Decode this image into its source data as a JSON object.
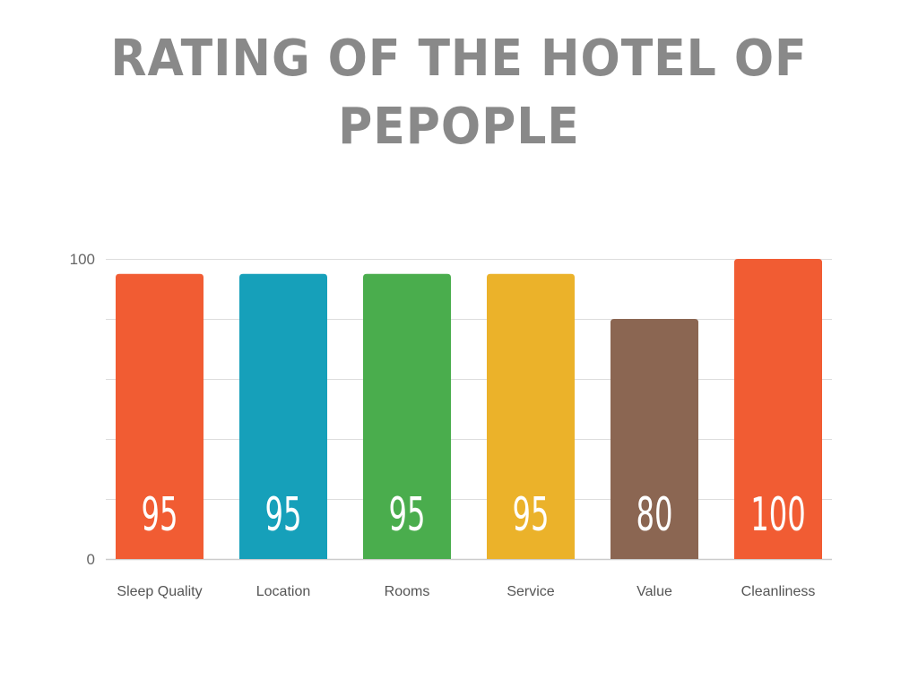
{
  "title": "RATING OF THE HOTEL OF PEPOPLE",
  "colors": {
    "title": "#898989",
    "grid": "#dddddd",
    "axis": "#cccccc"
  },
  "chart_data": {
    "type": "bar",
    "title": "RATING OF THE HOTEL OF PEPOPLE",
    "xlabel": "",
    "ylabel": "",
    "categories": [
      "Sleep Quality",
      "Location",
      "Rooms",
      "Service",
      "Value",
      "Cleanliness"
    ],
    "values": [
      95,
      95,
      95,
      95,
      80,
      100
    ],
    "data_labels": [
      "95",
      "95",
      "95",
      "95",
      "80",
      "100"
    ],
    "bar_colors": [
      "#f15c33",
      "#16a0ba",
      "#4aad4d",
      "#ebb22a",
      "#8b6652",
      "#f15c33"
    ],
    "ylim": [
      0,
      100
    ],
    "yticks_labeled": [
      "0",
      "100"
    ],
    "y_gridlines": [
      0,
      20,
      40,
      60,
      80,
      100
    ],
    "grid": true,
    "legend": "none"
  }
}
